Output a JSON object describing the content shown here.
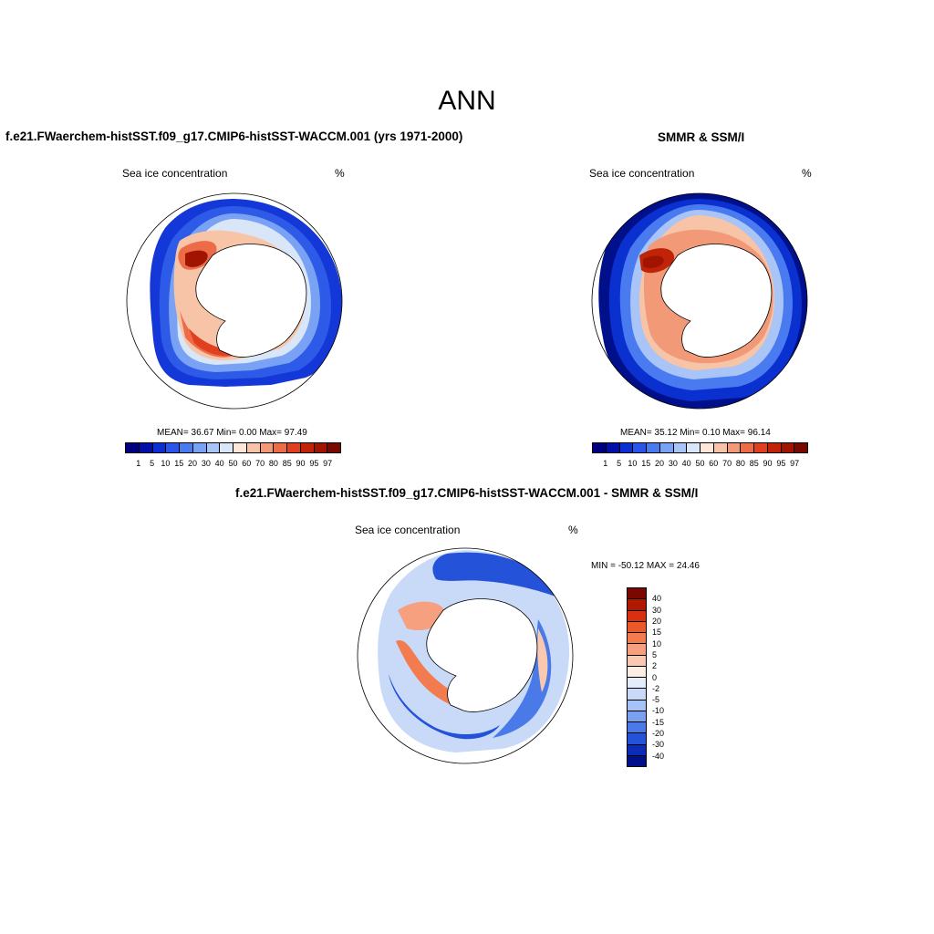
{
  "title": "ANN",
  "panels": {
    "model": {
      "title": "f.e21.FWaerchem-histSST.f09_g17.CMIP6-histSST-WACCM.001 (yrs 1971-2000)",
      "variable": "Sea ice concentration",
      "units": "%",
      "stats": "MEAN=  36.67  Min=   0.00  Max=  97.49"
    },
    "obs": {
      "title": "SMMR & SSM/I",
      "variable": "Sea ice concentration",
      "units": "%",
      "stats": "MEAN=  35.12  Min=   0.10  Max=  96.14"
    },
    "diff": {
      "title": "f.e21.FWaerchem-histSST.f09_g17.CMIP6-histSST-WACCM.001 - SMMR & SSM/I",
      "variable": "Sea ice concentration",
      "units": "%",
      "stats": "MIN = -50.12 MAX =  24.46"
    }
  },
  "colorbar_main": {
    "labels": [
      "1",
      "5",
      "10",
      "15",
      "20",
      "30",
      "40",
      "50",
      "60",
      "70",
      "80",
      "85",
      "90",
      "95",
      "97"
    ],
    "colors": [
      "#00007f",
      "#0010a8",
      "#0a30d0",
      "#2a55e8",
      "#4a7af0",
      "#7aa2f4",
      "#a9c4f6",
      "#d8e6f8",
      "#fde8d8",
      "#f8c4a8",
      "#f29a78",
      "#ec6c48",
      "#e04020",
      "#c02408",
      "#a01400",
      "#7a0800"
    ]
  },
  "colorbar_diff": {
    "labels": [
      "40",
      "30",
      "20",
      "15",
      "10",
      "5",
      "2",
      "0",
      "-2",
      "-5",
      "-10",
      "-15",
      "-20",
      "-30",
      "-40"
    ],
    "colors": [
      "#7a0800",
      "#b01800",
      "#d83010",
      "#ec5828",
      "#f27c50",
      "#f6a080",
      "#fac8b0",
      "#fdeee4",
      "#e4eefa",
      "#c8daf8",
      "#a6c2f6",
      "#7aa0f0",
      "#4a7ae8",
      "#2452d8",
      "#0a2cb8",
      "#00108a"
    ]
  }
}
